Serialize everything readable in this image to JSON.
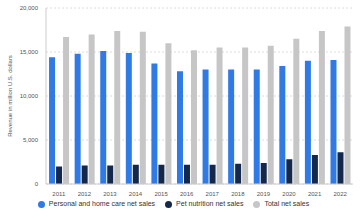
{
  "chart_data": {
    "type": "bar",
    "y_label": "Revenue in million U.S. dollars",
    "categories": [
      "2011",
      "2012",
      "2013",
      "2014",
      "2015",
      "2016",
      "2017",
      "2018",
      "2019",
      "2020",
      "2021",
      "2022"
    ],
    "series": [
      {
        "name": "Personal and home care net sales",
        "color": "#2f7ae5",
        "values": [
          14400,
          14800,
          15100,
          14900,
          13700,
          12800,
          13000,
          13000,
          13000,
          13400,
          14000,
          14100
        ]
      },
      {
        "name": "Pet nutrition net sales",
        "color": "#14284b",
        "values": [
          2000,
          2100,
          2100,
          2200,
          2200,
          2200,
          2200,
          2300,
          2400,
          2800,
          3300,
          3600
        ]
      },
      {
        "name": "Total net sales",
        "color": "#c6c6c6",
        "values": [
          16700,
          17000,
          17400,
          17300,
          16000,
          15200,
          15500,
          15500,
          15700,
          16500,
          17400,
          17900
        ]
      }
    ],
    "ylim": [
      0,
      20000
    ],
    "yticks": [
      0,
      {
        "value": 5000,
        "label": "5,000"
      },
      {
        "value": 10000,
        "label": "10,000"
      },
      {
        "value": 15000,
        "label": "15,000"
      },
      {
        "value": 20000,
        "label": "20,000"
      }
    ],
    "grid": true,
    "legend": "bottom"
  }
}
